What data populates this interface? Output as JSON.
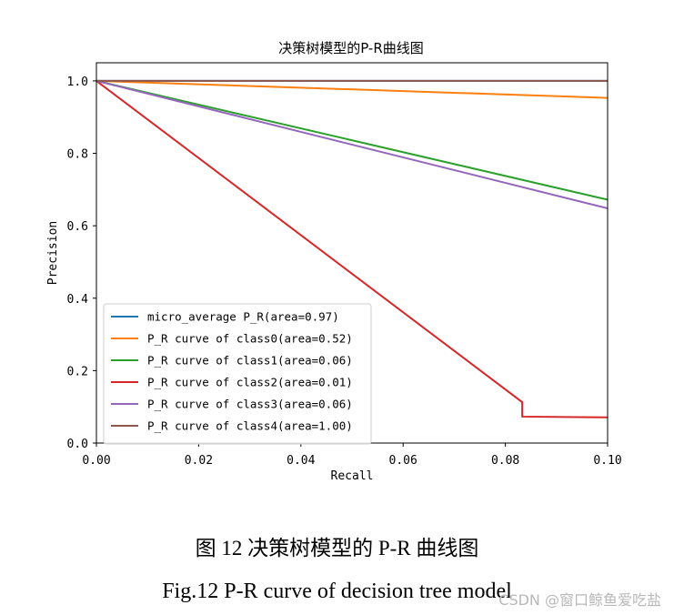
{
  "chart_data": {
    "type": "line",
    "title": "决策树模型的P-R曲线图",
    "xlabel": "Recall",
    "ylabel": "Precision",
    "xlim": [
      0,
      0.1
    ],
    "ylim": [
      0,
      1.05
    ],
    "xticks": [
      "0.00",
      "0.02",
      "0.04",
      "0.06",
      "0.08",
      "0.10"
    ],
    "yticks": [
      "0.0",
      "0.2",
      "0.4",
      "0.6",
      "0.8",
      "1.0"
    ],
    "grid": false,
    "legend_position": "lower-left",
    "series": [
      {
        "name": "micro_average P_R(area=0.97)",
        "color": "#1f77b4",
        "x": [
          0,
          0.1
        ],
        "y": [
          1.0,
          1.0
        ]
      },
      {
        "name": "P_R curve of class0(area=0.52)",
        "color": "#ff7f0e",
        "x": [
          0,
          0.1
        ],
        "y": [
          1.0,
          0.953
        ]
      },
      {
        "name": "P_R curve of class1(area=0.06)",
        "color": "#2ca02c",
        "x": [
          0,
          0.1
        ],
        "y": [
          1.0,
          0.672
        ]
      },
      {
        "name": "P_R curve of class2(area=0.01)",
        "color": "#d62728",
        "x": [
          0,
          0.0833,
          0.0833,
          0.1
        ],
        "y": [
          1.0,
          0.113,
          0.073,
          0.071
        ]
      },
      {
        "name": "P_R curve of class3(area=0.06)",
        "color": "#9467bd",
        "x": [
          0,
          0.1
        ],
        "y": [
          1.0,
          0.648
        ]
      },
      {
        "name": "P_R curve of class4(area=1.00)",
        "color": "#8c564b",
        "x": [
          0,
          0.1
        ],
        "y": [
          1.0,
          1.0
        ]
      }
    ]
  },
  "caption_cn": "图 12 决策树模型的 P-R 曲线图",
  "caption_en": "Fig.12 P-R curve of decision tree model",
  "watermark": "CSDN @窗口鲸鱼爱吃盐"
}
